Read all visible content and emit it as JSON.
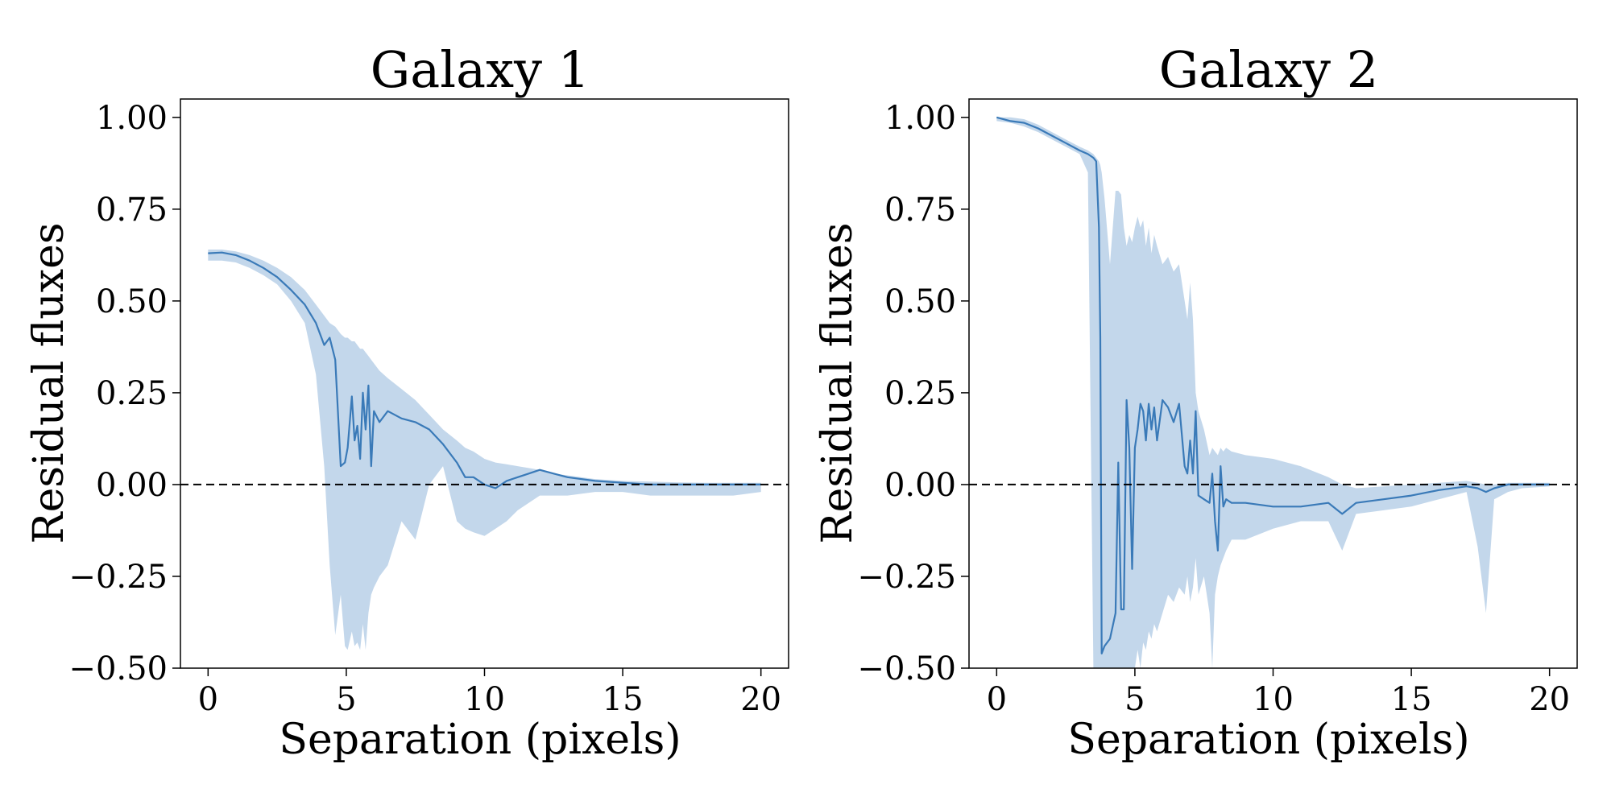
{
  "colors": {
    "line": "#3a7ab8",
    "band": "#a9c6e2"
  },
  "chart_data": [
    {
      "type": "line",
      "title": "Galaxy 1",
      "xlabel": "Separation (pixels)",
      "ylabel": "Residual fluxes",
      "xlim": [
        -1,
        21
      ],
      "ylim": [
        -0.5,
        1.05
      ],
      "xticks": [
        0,
        5,
        10,
        15,
        20
      ],
      "yticks": [
        -0.5,
        -0.25,
        0.0,
        0.25,
        0.5,
        0.75,
        1.0
      ],
      "xtick_labels": [
        "0",
        "5",
        "10",
        "15",
        "20"
      ],
      "ytick_labels": [
        "−0.50",
        "−0.25",
        "0.00",
        "0.25",
        "0.50",
        "0.75",
        "1.00"
      ],
      "hline": 0,
      "series": [
        {
          "x": [
            0,
            0.5,
            1,
            1.5,
            2,
            2.5,
            3,
            3.5,
            3.9,
            4.2,
            4.4,
            4.6,
            4.8,
            4.95,
            5.05,
            5.2,
            5.3,
            5.4,
            5.5,
            5.6,
            5.7,
            5.8,
            5.9,
            6.0,
            6.2,
            6.5,
            7,
            7.5,
            8,
            8.5,
            9,
            9.3,
            9.6,
            10,
            10.4,
            10.8,
            11.2,
            11.6,
            12,
            12.5,
            13,
            14,
            15,
            16,
            17,
            18,
            19,
            20
          ],
          "y": [
            0.63,
            0.632,
            0.625,
            0.61,
            0.59,
            0.565,
            0.53,
            0.49,
            0.44,
            0.38,
            0.4,
            0.34,
            0.05,
            0.06,
            0.1,
            0.24,
            0.12,
            0.16,
            0.07,
            0.25,
            0.15,
            0.27,
            0.05,
            0.2,
            0.17,
            0.2,
            0.18,
            0.17,
            0.15,
            0.11,
            0.06,
            0.02,
            0.02,
            0.0,
            -0.01,
            0.01,
            0.02,
            0.03,
            0.04,
            0.03,
            0.02,
            0.01,
            0.005,
            0.0,
            0.0,
            0.0,
            0.0,
            0.0
          ],
          "upper": [
            0.64,
            0.64,
            0.635,
            0.625,
            0.61,
            0.59,
            0.565,
            0.53,
            0.49,
            0.46,
            0.44,
            0.43,
            0.41,
            0.4,
            0.4,
            0.39,
            0.39,
            0.38,
            0.37,
            0.37,
            0.36,
            0.35,
            0.34,
            0.33,
            0.31,
            0.29,
            0.26,
            0.23,
            0.19,
            0.15,
            0.12,
            0.1,
            0.09,
            0.07,
            0.06,
            0.055,
            0.05,
            0.045,
            0.04,
            0.03,
            0.025,
            0.015,
            0.01,
            0.008,
            0.006,
            0.005,
            0.005,
            0.005
          ],
          "lower": [
            0.61,
            0.61,
            0.605,
            0.59,
            0.57,
            0.545,
            0.5,
            0.44,
            0.3,
            0.05,
            -0.22,
            -0.41,
            -0.3,
            -0.44,
            -0.45,
            -0.4,
            -0.44,
            -0.43,
            -0.45,
            -0.38,
            -0.45,
            -0.35,
            -0.3,
            -0.28,
            -0.25,
            -0.22,
            -0.1,
            -0.15,
            0.0,
            0.05,
            -0.1,
            -0.12,
            -0.13,
            -0.14,
            -0.12,
            -0.1,
            -0.07,
            -0.05,
            -0.03,
            -0.03,
            -0.03,
            -0.02,
            -0.02,
            -0.03,
            -0.03,
            -0.03,
            -0.03,
            -0.02
          ]
        }
      ]
    },
    {
      "type": "line",
      "title": "Galaxy 2",
      "xlabel": "Separation (pixels)",
      "ylabel": "Residual fluxes",
      "xlim": [
        -1,
        21
      ],
      "ylim": [
        -0.5,
        1.05
      ],
      "xticks": [
        0,
        5,
        10,
        15,
        20
      ],
      "yticks": [
        -0.5,
        -0.25,
        0.0,
        0.25,
        0.5,
        0.75,
        1.0
      ],
      "xtick_labels": [
        "0",
        "5",
        "10",
        "15",
        "20"
      ],
      "ytick_labels": [
        "−0.50",
        "−0.25",
        "0.00",
        "0.25",
        "0.50",
        "0.75",
        "1.00"
      ],
      "hline": 0,
      "series": [
        {
          "x": [
            0,
            0.5,
            1,
            1.5,
            2,
            2.5,
            3,
            3.3,
            3.5,
            3.6,
            3.7,
            3.75,
            3.8,
            3.9,
            4.1,
            4.3,
            4.4,
            4.5,
            4.6,
            4.7,
            4.8,
            4.9,
            5.0,
            5.1,
            5.2,
            5.3,
            5.4,
            5.5,
            5.6,
            5.7,
            5.8,
            6.0,
            6.2,
            6.4,
            6.6,
            6.8,
            6.9,
            7.0,
            7.1,
            7.2,
            7.3,
            7.5,
            7.7,
            7.8,
            7.9,
            8.0,
            8.1,
            8.2,
            8.3,
            8.5,
            9,
            10,
            11,
            12,
            12.5,
            13,
            14,
            15,
            16,
            17,
            17.4,
            17.7,
            18,
            18.5,
            19,
            20
          ],
          "y": [
            1.0,
            0.99,
            0.985,
            0.97,
            0.95,
            0.93,
            0.91,
            0.9,
            0.89,
            0.88,
            0.7,
            0.4,
            -0.46,
            -0.44,
            -0.42,
            -0.35,
            0.06,
            -0.34,
            -0.34,
            0.23,
            0.1,
            -0.23,
            0.1,
            0.15,
            0.22,
            0.2,
            0.12,
            0.22,
            0.15,
            0.21,
            0.12,
            0.23,
            0.21,
            0.17,
            0.22,
            0.05,
            0.03,
            0.12,
            0.03,
            0.2,
            -0.03,
            -0.04,
            -0.05,
            0.03,
            -0.1,
            -0.18,
            0.05,
            -0.06,
            -0.04,
            -0.05,
            -0.05,
            -0.06,
            -0.06,
            -0.05,
            -0.08,
            -0.05,
            -0.04,
            -0.03,
            -0.015,
            -0.005,
            -0.01,
            -0.02,
            -0.01,
            0.0,
            0.0,
            0.0
          ],
          "upper": [
            1.0,
            1.0,
            0.995,
            0.98,
            0.96,
            0.94,
            0.92,
            0.91,
            0.9,
            0.89,
            0.88,
            0.87,
            0.85,
            0.78,
            0.6,
            0.8,
            0.8,
            0.79,
            0.7,
            0.65,
            0.68,
            0.66,
            0.7,
            0.73,
            0.7,
            0.72,
            0.65,
            0.7,
            0.63,
            0.68,
            0.65,
            0.6,
            0.62,
            0.58,
            0.6,
            0.5,
            0.45,
            0.55,
            0.45,
            0.25,
            0.2,
            0.15,
            0.08,
            0.1,
            0.09,
            0.08,
            0.1,
            0.09,
            0.1,
            0.09,
            0.08,
            0.07,
            0.05,
            0.02,
            0.0,
            -0.01,
            -0.005,
            0.0,
            0.005,
            0.01,
            0.005,
            0.0,
            0.0,
            0.005,
            0.005,
            0.005
          ],
          "lower": [
            0.99,
            0.985,
            0.975,
            0.96,
            0.94,
            0.92,
            0.9,
            0.85,
            -0.5,
            -0.5,
            -0.5,
            -0.5,
            -0.5,
            -0.5,
            -0.5,
            -0.5,
            -0.5,
            -0.5,
            -0.5,
            -0.5,
            -0.5,
            -0.5,
            -0.5,
            -0.45,
            -0.5,
            -0.43,
            -0.45,
            -0.4,
            -0.42,
            -0.38,
            -0.4,
            -0.35,
            -0.3,
            -0.32,
            -0.28,
            -0.3,
            -0.25,
            -0.32,
            -0.28,
            -0.2,
            -0.3,
            -0.25,
            -0.35,
            -0.5,
            -0.3,
            -0.25,
            -0.22,
            -0.2,
            -0.18,
            -0.15,
            -0.15,
            -0.12,
            -0.1,
            -0.1,
            -0.18,
            -0.08,
            -0.07,
            -0.06,
            -0.04,
            -0.02,
            -0.17,
            -0.35,
            -0.04,
            -0.02,
            -0.01,
            -0.005
          ]
        }
      ]
    }
  ]
}
